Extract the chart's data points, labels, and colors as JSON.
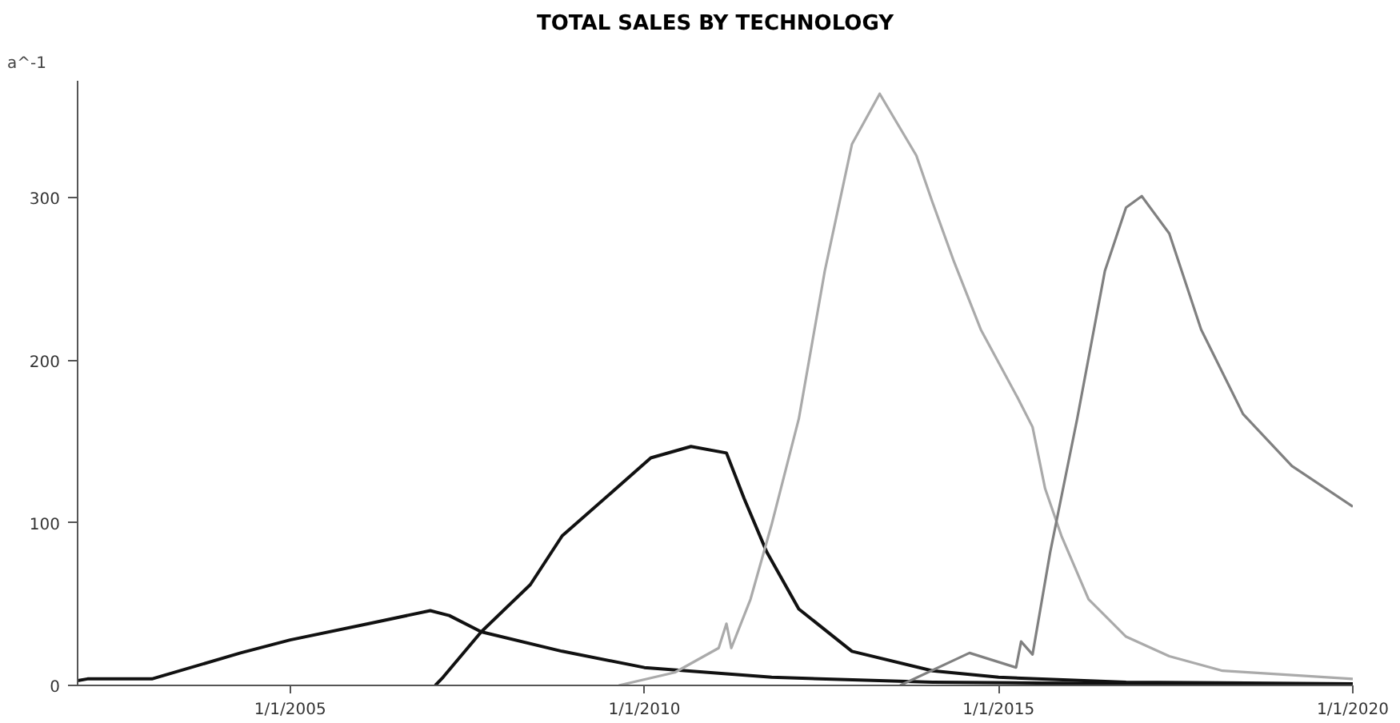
{
  "chart_data": {
    "type": "line",
    "title": "TOTAL SALES BY TECHNOLOGY",
    "ylabel": "a^-1",
    "xlim": [
      "2002-01-01",
      "2020-01-01"
    ],
    "ylim": [
      0,
      372
    ],
    "xticks": [
      {
        "value": "2005-01-01",
        "label": "1/1/2005"
      },
      {
        "value": "2010-01-01",
        "label": "1/1/2010"
      },
      {
        "value": "2015-01-01",
        "label": "1/1/2015"
      },
      {
        "value": "2020-01-01",
        "label": "1/1/2020"
      }
    ],
    "yticks": [
      0,
      100,
      200,
      300
    ],
    "grid": false,
    "marker": "none",
    "line_style": "solid",
    "series": [
      {
        "color": "#111111",
        "x": [
          "2002-01-01",
          "2002-02-21",
          "2003-01-19",
          "2004-04-20",
          "2005-01-01",
          "2006-02-10",
          "2006-12-24",
          "2007-04-01",
          "2007-09-13",
          "2008-11-03",
          "2010-01-01",
          "2011-10-19",
          "2014-01-26",
          "2016-10-19",
          "2020-01-01"
        ],
        "values": [
          3,
          4,
          4,
          20,
          28,
          38,
          46,
          43,
          33,
          21,
          11,
          5,
          2,
          1,
          1
        ]
      },
      {
        "color": "#111111",
        "x": [
          "2007-01-19",
          "2007-02-28",
          "2007-09-13",
          "2008-05-23",
          "2008-11-03",
          "2009-07-09",
          "2010-02-03",
          "2010-08-29",
          "2011-02-28",
          "2011-05-30",
          "2011-09-24",
          "2012-03-07",
          "2012-12-06",
          "2014-01-26",
          "2015-01-01",
          "2016-10-19",
          "2020-01-01"
        ],
        "values": [
          0,
          5,
          33,
          62,
          92,
          118,
          140,
          147,
          143,
          115,
          82,
          47,
          21,
          9,
          5,
          2,
          1
        ]
      },
      {
        "color": "#aaaaaa",
        "x": [
          "2009-08-22",
          "2010-06-07",
          "2011-01-19",
          "2011-02-28",
          "2011-03-25",
          "2011-07-02",
          "2011-10-19",
          "2012-03-07",
          "2012-07-19",
          "2012-12-06",
          "2013-04-28",
          "2013-11-03",
          "2014-01-26",
          "2014-05-12",
          "2014-10-01",
          "2015-04-09",
          "2015-06-25",
          "2015-08-29",
          "2015-11-21",
          "2016-04-09",
          "2016-10-19",
          "2017-05-30",
          "2018-02-28",
          "2020-01-01"
        ],
        "values": [
          0,
          8,
          23,
          38,
          23,
          53,
          99,
          164,
          255,
          333,
          364,
          326,
          297,
          262,
          219,
          177,
          159,
          121,
          92,
          53,
          30,
          18,
          9,
          4
        ]
      },
      {
        "color": "#808080",
        "x": [
          "2013-08-11",
          "2014-08-04",
          "2015-04-01",
          "2015-04-27",
          "2015-06-25",
          "2015-09-24",
          "2016-02-10",
          "2016-07-02",
          "2016-10-19",
          "2017-01-08",
          "2017-05-30",
          "2017-11-10",
          "2018-06-14",
          "2019-02-21",
          "2020-01-01"
        ],
        "values": [
          0,
          20,
          11,
          27,
          19,
          82,
          164,
          255,
          294,
          301,
          278,
          219,
          167,
          135,
          110
        ]
      }
    ]
  }
}
